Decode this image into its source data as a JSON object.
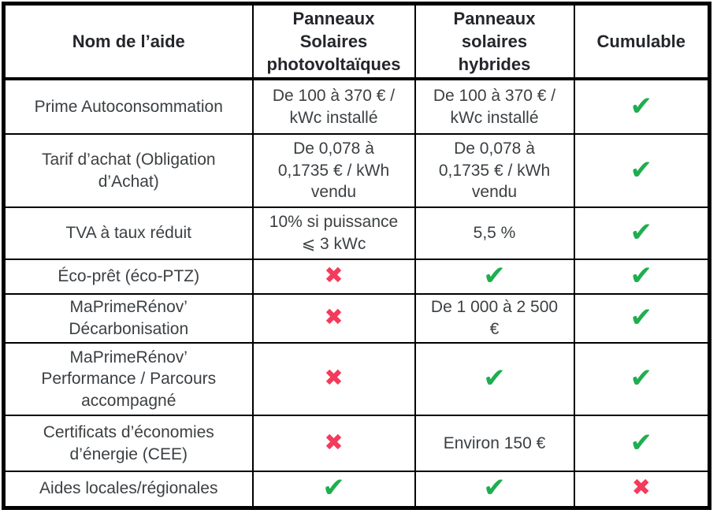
{
  "colors": {
    "check_green": "#1fae4f",
    "cross_red": "#f43b5c",
    "border_black": "#000000",
    "body_text": "#3c4043",
    "header_text": "#24262b",
    "background": "#ffffff"
  },
  "icons": {
    "check": "✔",
    "cross": "✖"
  },
  "table": {
    "headers": {
      "name": "Nom de l’aide",
      "pv": "Panneaux\nSolaires\nphotovoltaïques",
      "hybrid": "Panneaux\nsolaires\nhybrides",
      "cumulable": "Cumulable"
    },
    "rows": [
      {
        "name": "Prime Autoconsommation",
        "pv": "De 100 à 370 € /\nkWc installé",
        "hybrid": "De 100 à 370 € /\nkWc installé",
        "cumulable": "✔"
      },
      {
        "name": "Tarif d’achat (Obligation\nd’Achat)",
        "pv": "De 0,078 à\n0,1735 € / kWh\nvendu",
        "hybrid": "De 0,078 à\n0,1735 € / kWh\nvendu",
        "cumulable": "✔"
      },
      {
        "name": "TVA à taux réduit",
        "pv": "10% si puissance\n⩽ 3 kWc",
        "hybrid": "5,5 %",
        "cumulable": "✔"
      },
      {
        "name": "Éco-prêt (éco-PTZ)",
        "pv": "✖",
        "hybrid": "✔",
        "cumulable": "✔"
      },
      {
        "name": "MaPrimeRénov’\nDécarbonisation",
        "pv": "✖",
        "hybrid": "De 1 000 à 2 500\n€",
        "cumulable": "✔"
      },
      {
        "name": "MaPrimeRénov’\nPerformance / Parcours\naccompagné",
        "pv": "✖",
        "hybrid": "✔",
        "cumulable": "✔"
      },
      {
        "name": "Certificats d’économies\nd’énergie (CEE)",
        "pv": "✖",
        "hybrid": "Environ 150 €",
        "cumulable": "✔"
      },
      {
        "name": "Aides locales/régionales",
        "pv": "✔",
        "hybrid": "✔",
        "cumulable": "✖"
      }
    ]
  }
}
